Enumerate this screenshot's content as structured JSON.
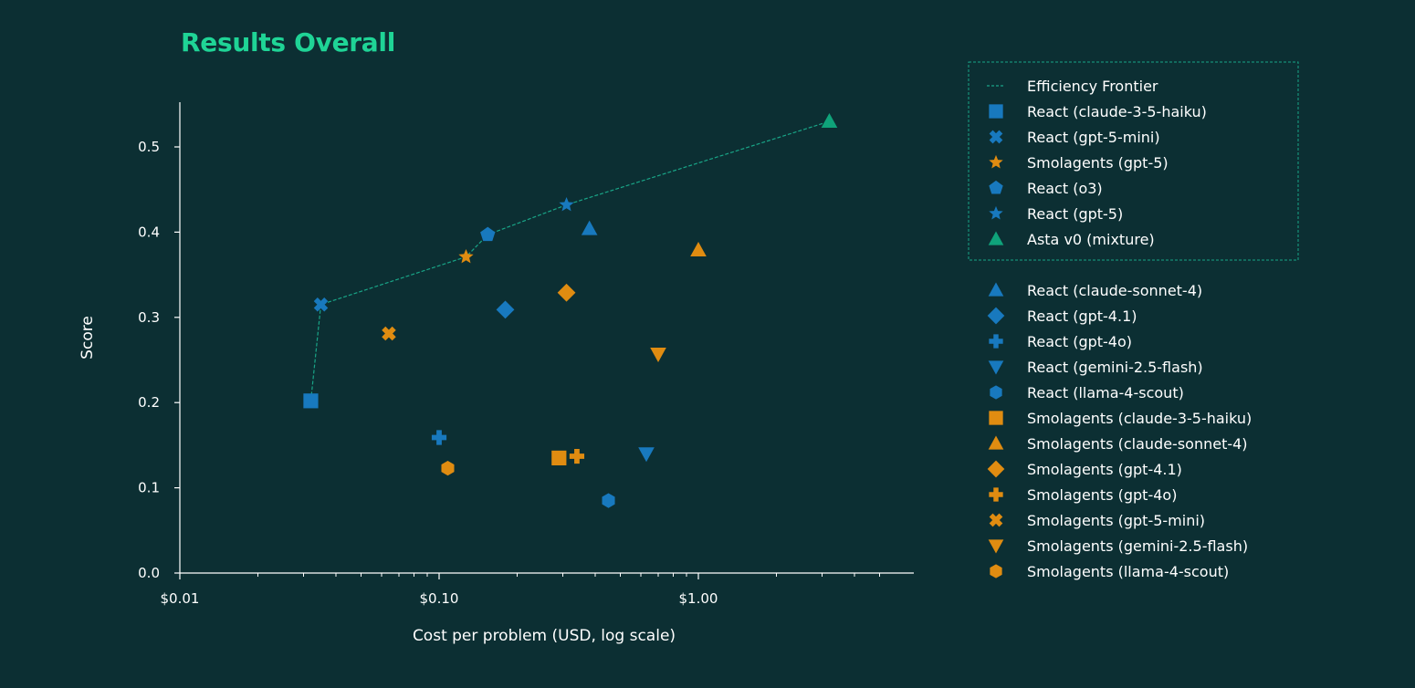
{
  "chart_data": {
    "type": "scatter",
    "title": "Results Overall",
    "xlabel": "Cost per problem (USD, log scale)",
    "ylabel": "Score",
    "x_scale": "log",
    "xlim": [
      0.01,
      5.5
    ],
    "ylim": [
      0,
      0.55
    ],
    "x_ticks": [
      0.01,
      0.1,
      1.0
    ],
    "x_tick_labels": [
      "$0.01",
      "$0.10",
      "$1.00"
    ],
    "y_ticks": [
      0.0,
      0.1,
      0.2,
      0.3,
      0.4,
      0.5
    ],
    "y_tick_labels": [
      "0.0",
      "0.1",
      "0.2",
      "0.3",
      "0.4",
      "0.5"
    ],
    "grid": false,
    "legend_position": "right",
    "colors": {
      "background": "#0c2f33",
      "blue": "#1879be",
      "orange": "#e08c11",
      "green": "#0fa37a",
      "title": "#1fd496",
      "frontier": "#19a587"
    },
    "frontier": {
      "name": "Efficiency Frontier",
      "points": [
        [
          0.032,
          0.202
        ],
        [
          0.035,
          0.315
        ],
        [
          0.127,
          0.371
        ],
        [
          0.154,
          0.397
        ],
        [
          0.31,
          0.432
        ],
        [
          3.2,
          0.53
        ]
      ]
    },
    "frontier_series": [
      {
        "name": "React (claude-3-5-haiku)",
        "marker": "square",
        "color": "#1879be",
        "x": 0.032,
        "y": 0.202
      },
      {
        "name": "React (gpt-5-mini)",
        "marker": "x",
        "color": "#1879be",
        "x": 0.035,
        "y": 0.315
      },
      {
        "name": "Smolagents (gpt-5)",
        "marker": "star",
        "color": "#e08c11",
        "x": 0.127,
        "y": 0.371
      },
      {
        "name": "React (o3)",
        "marker": "pentagon",
        "color": "#1879be",
        "x": 0.154,
        "y": 0.397
      },
      {
        "name": "React (gpt-5)",
        "marker": "star",
        "color": "#1879be",
        "x": 0.31,
        "y": 0.432
      },
      {
        "name": "Asta v0 (mixture)",
        "marker": "triangle-up",
        "color": "#0fa37a",
        "x": 3.2,
        "y": 0.53
      }
    ],
    "other_series": [
      {
        "name": "React (claude-sonnet-4)",
        "marker": "triangle-up",
        "color": "#1879be",
        "x": 0.38,
        "y": 0.404
      },
      {
        "name": "React (gpt-4.1)",
        "marker": "diamond",
        "color": "#1879be",
        "x": 0.18,
        "y": 0.309
      },
      {
        "name": "React (gpt-4o)",
        "marker": "plus",
        "color": "#1879be",
        "x": 0.1,
        "y": 0.159
      },
      {
        "name": "React (gemini-2.5-flash)",
        "marker": "triangle-down",
        "color": "#1879be",
        "x": 0.63,
        "y": 0.14
      },
      {
        "name": "React (llama-4-scout)",
        "marker": "hexagon",
        "color": "#1879be",
        "x": 0.45,
        "y": 0.085
      },
      {
        "name": "Smolagents (claude-3-5-haiku)",
        "marker": "square",
        "color": "#e08c11",
        "x": 0.29,
        "y": 0.135
      },
      {
        "name": "Smolagents (claude-sonnet-4)",
        "marker": "triangle-up",
        "color": "#e08c11",
        "x": 1.0,
        "y": 0.379
      },
      {
        "name": "Smolagents (gpt-4.1)",
        "marker": "diamond",
        "color": "#e08c11",
        "x": 0.31,
        "y": 0.329
      },
      {
        "name": "Smolagents (gpt-4o)",
        "marker": "plus",
        "color": "#e08c11",
        "x": 0.34,
        "y": 0.137
      },
      {
        "name": "Smolagents (gpt-5-mini)",
        "marker": "x",
        "color": "#e08c11",
        "x": 0.064,
        "y": 0.281
      },
      {
        "name": "Smolagents (gemini-2.5-flash)",
        "marker": "triangle-down",
        "color": "#e08c11",
        "x": 0.7,
        "y": 0.257
      },
      {
        "name": "Smolagents (llama-4-scout)",
        "marker": "hexagon",
        "color": "#e08c11",
        "x": 0.108,
        "y": 0.123
      }
    ]
  }
}
